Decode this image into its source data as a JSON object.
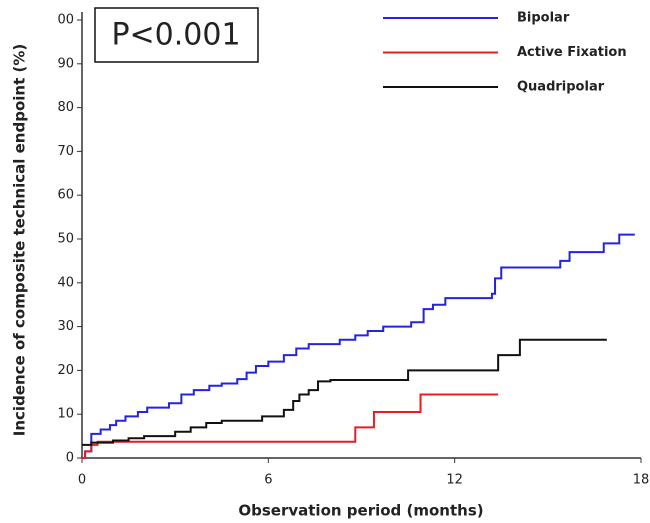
{
  "chart_data": {
    "type": "line",
    "step": true,
    "annotation": "P<0.001",
    "xlabel": "Observation period (months)",
    "ylabel": "Incidence of composite technical endpoint (%)",
    "xlim": [
      0,
      18
    ],
    "xticks": [
      0,
      6,
      12,
      18
    ],
    "ylim": [
      0,
      100
    ],
    "yticks": [
      0,
      10,
      20,
      30,
      40,
      50,
      60,
      70,
      80,
      90,
      {
        "value": 100,
        "label": "00"
      }
    ],
    "legend": "top-right",
    "series": [
      {
        "name": "Bipolar",
        "color": "#2323e0",
        "x": [
          0,
          0.1,
          0.3,
          0.6,
          0.9,
          1.1,
          1.4,
          1.8,
          2.1,
          2.8,
          3.2,
          3.6,
          4.1,
          4.5,
          5.0,
          5.3,
          5.6,
          6.0,
          6.5,
          6.9,
          7.3,
          8.3,
          8.8,
          9.2,
          9.7,
          10.6,
          11.0,
          11.3,
          11.7,
          13.2,
          13.3,
          13.5,
          15.4,
          15.7,
          16.8,
          17.3,
          17.8
        ],
        "values": [
          0,
          1.5,
          5.5,
          6.5,
          7.5,
          8.5,
          9.5,
          10.5,
          11.5,
          12.5,
          14.5,
          15.5,
          16.5,
          17,
          18,
          19.5,
          21,
          22,
          23.5,
          25,
          26,
          27,
          28,
          29,
          30,
          31,
          34,
          35,
          36.5,
          37.5,
          41,
          43.5,
          45,
          47,
          49,
          51,
          51
        ]
      },
      {
        "name": "Active Fixation",
        "color": "#e02020",
        "x": [
          0,
          0.1,
          0.3,
          0.5,
          8.8,
          9.4,
          10.9,
          13.4
        ],
        "values": [
          0,
          1.5,
          3,
          3.7,
          7,
          10.5,
          14.5,
          14.5
        ]
      },
      {
        "name": "Quadripolar",
        "color": "#111111",
        "x": [
          0,
          0.3,
          1.0,
          1.5,
          2.0,
          3.0,
          3.5,
          4.0,
          4.5,
          5.8,
          6.5,
          6.8,
          7.0,
          7.3,
          7.6,
          8.0,
          10.5,
          13.4,
          14.1,
          16.9
        ],
        "values": [
          3,
          3.5,
          4,
          4.5,
          5,
          6,
          7,
          8,
          8.5,
          9.5,
          11,
          13,
          14.5,
          15.5,
          17.5,
          17.8,
          20,
          23.5,
          27,
          27
        ]
      }
    ]
  }
}
